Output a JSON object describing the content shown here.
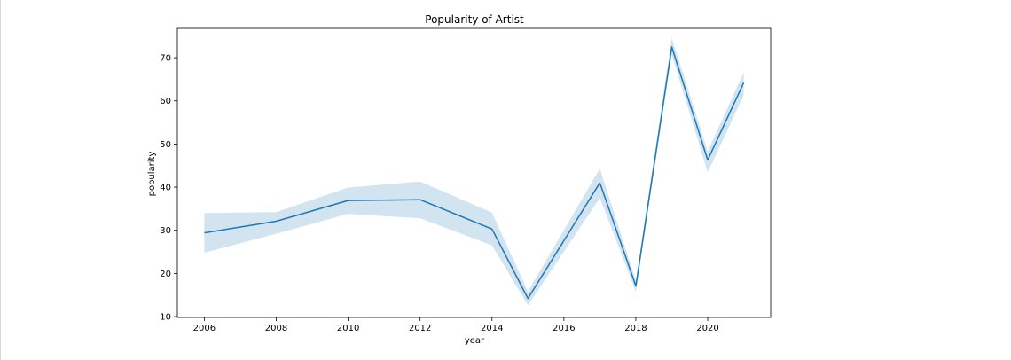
{
  "chart_data": {
    "type": "line",
    "title": "Popularity of Artist",
    "xlabel": "year",
    "ylabel": "popularity",
    "xlim": [
      2005.25,
      2021.75
    ],
    "ylim": [
      9.8,
      76.8
    ],
    "x_ticks": [
      2006,
      2008,
      2010,
      2012,
      2014,
      2016,
      2018,
      2020
    ],
    "x_tick_labels": [
      "2006",
      "2008",
      "2010",
      "2012",
      "2014",
      "2016",
      "2018",
      "2020"
    ],
    "y_ticks": [
      10,
      20,
      30,
      40,
      50,
      60,
      70
    ],
    "y_tick_labels": [
      "10",
      "20",
      "30",
      "40",
      "50",
      "60",
      "70"
    ],
    "grid": false,
    "series": [
      {
        "x": [
          2006,
          2008,
          2010,
          2012,
          2014,
          2015,
          2017,
          2018,
          2019,
          2020,
          2021
        ],
        "y": [
          29.4,
          32.1,
          36.9,
          37.1,
          30.3,
          14.2,
          41.0,
          17.1,
          72.5,
          46.3,
          64.2
        ],
        "ci_upper": [
          34.0,
          34.2,
          39.9,
          41.3,
          34.1,
          15.8,
          44.3,
          18.3,
          74.6,
          48.3,
          66.6
        ],
        "ci_lower": [
          24.8,
          29.2,
          33.8,
          32.8,
          26.5,
          12.6,
          37.5,
          15.7,
          70.7,
          43.4,
          61.3
        ]
      }
    ],
    "colors": {
      "line": "#1f77b4",
      "band": "#1f77b4"
    }
  }
}
